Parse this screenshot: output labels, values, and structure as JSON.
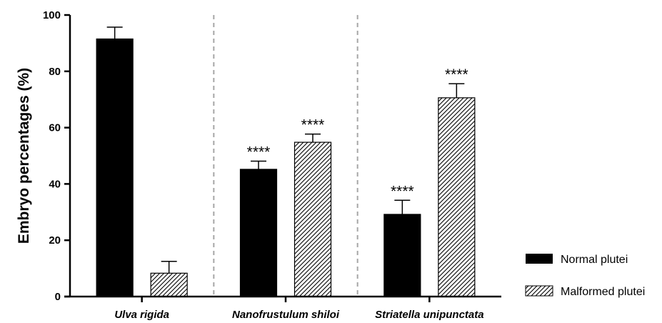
{
  "chart_data": {
    "type": "bar",
    "ylabel": "Embryo percentages (%)",
    "xlabel": "",
    "ylim": [
      0,
      100
    ],
    "yticks": [
      "0",
      "20",
      "40",
      "60",
      "80",
      "100"
    ],
    "categories": [
      "Ulva rigida",
      "Nanofrustulum shiloi",
      "Striatella unipunctata"
    ],
    "series": [
      {
        "name": "Normal plutei",
        "fill": "solid",
        "color": "#000000",
        "values": [
          91.5,
          45.2,
          29.2
        ],
        "errors": [
          4.2,
          2.9,
          5.0
        ],
        "significance": [
          "",
          "****",
          "****"
        ]
      },
      {
        "name": "Malformed plutei",
        "fill": "hatched",
        "color": "#000000",
        "values": [
          8.3,
          54.8,
          70.6
        ],
        "errors": [
          4.2,
          2.9,
          5.0
        ],
        "significance": [
          "",
          "****",
          "****"
        ]
      }
    ],
    "group_separators": "dashed",
    "grid": false,
    "legend_position": "right"
  }
}
